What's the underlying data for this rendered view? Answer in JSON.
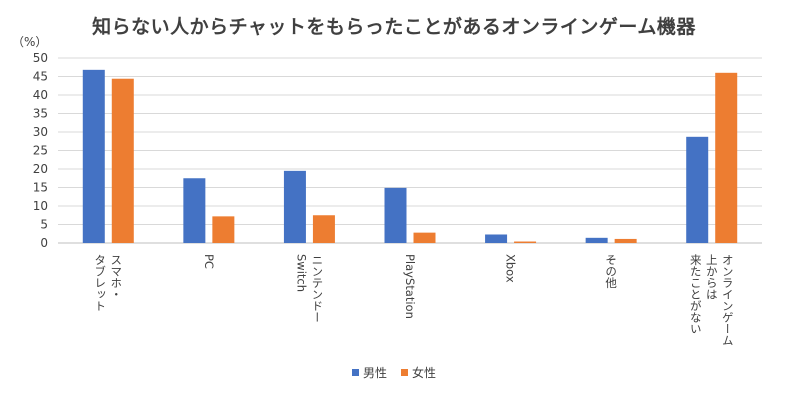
{
  "chart_data": {
    "type": "bar",
    "title": "知らない人からチャットをもらったことがあるオンラインゲーム機器",
    "ylabel": "（%）",
    "xlabel": "",
    "ylim": [
      0,
      50
    ],
    "yticks": [
      0,
      5,
      10,
      15,
      20,
      25,
      30,
      35,
      40,
      45,
      50
    ],
    "grid": true,
    "legend_position": "bottom",
    "categories": [
      "スマホ・\nタブレット",
      "PC",
      "ニンテンドー\nSwitch",
      "PlayStation",
      "Xbox",
      "その他",
      "オンラインゲーム\n上からは\n来たことがない"
    ],
    "series": [
      {
        "name": "男性",
        "color": "#4472C4",
        "values": [
          46.8,
          17.5,
          19.5,
          14.9,
          2.3,
          1.4,
          28.7
        ]
      },
      {
        "name": "女性",
        "color": "#ED7D31",
        "values": [
          44.4,
          7.2,
          7.5,
          2.8,
          0.4,
          1.1,
          46.0
        ]
      }
    ]
  }
}
